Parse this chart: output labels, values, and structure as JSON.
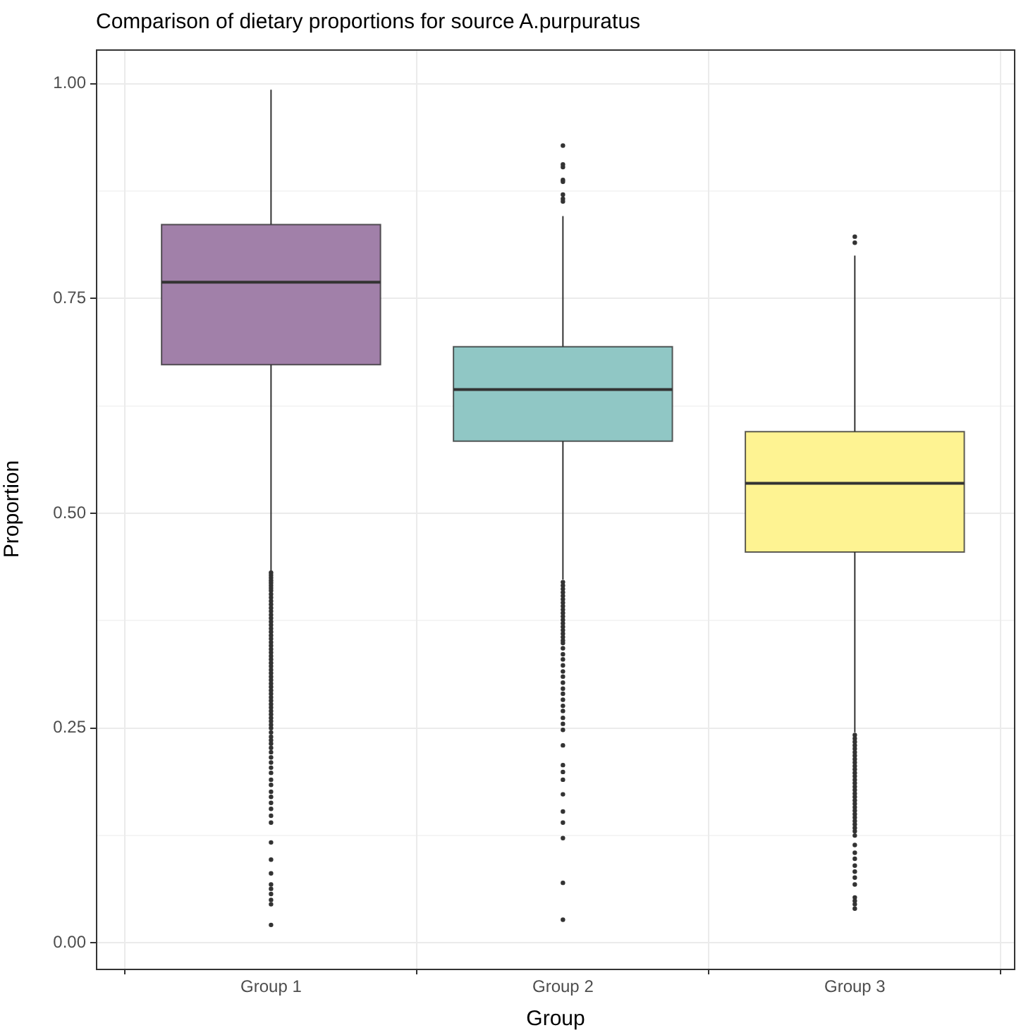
{
  "chart_data": {
    "type": "box",
    "title": "Comparison of dietary proportions for source A.purpuratus",
    "xlabel": "Group",
    "ylabel": "Proportion",
    "categories": [
      "Group 1",
      "Group 2",
      "Group 3"
    ],
    "colors": [
      "#a180a9",
      "#90c7c5",
      "#fef392"
    ],
    "boxes": [
      {
        "low": 0.43,
        "q1": 0.673,
        "median": 0.769,
        "q3": 0.836,
        "high": 0.993,
        "outliers": [
          0.431,
          0.428,
          0.425,
          0.422,
          0.419,
          0.416,
          0.413,
          0.41,
          0.406,
          0.402,
          0.398,
          0.394,
          0.39,
          0.386,
          0.382,
          0.378,
          0.374,
          0.37,
          0.366,
          0.362,
          0.358,
          0.354,
          0.35,
          0.346,
          0.342,
          0.338,
          0.334,
          0.33,
          0.326,
          0.322,
          0.318,
          0.314,
          0.31,
          0.306,
          0.302,
          0.298,
          0.294,
          0.29,
          0.286,
          0.282,
          0.278,
          0.274,
          0.27,
          0.266,
          0.262,
          0.258,
          0.254,
          0.25,
          0.245,
          0.24,
          0.236,
          0.232,
          0.227,
          0.222,
          0.216,
          0.21,
          0.204,
          0.198,
          0.19,
          0.184,
          0.176,
          0.17,
          0.163,
          0.156,
          0.148,
          0.14,
          0.117,
          0.097,
          0.081,
          0.068,
          0.063,
          0.057,
          0.05,
          0.045,
          0.021
        ]
      },
      {
        "low": 0.423,
        "q1": 0.584,
        "median": 0.644,
        "q3": 0.694,
        "high": 0.846,
        "outliers": [
          0.928,
          0.906,
          0.903,
          0.888,
          0.886,
          0.871,
          0.866,
          0.863,
          0.42,
          0.416,
          0.412,
          0.408,
          0.404,
          0.4,
          0.396,
          0.392,
          0.388,
          0.384,
          0.38,
          0.376,
          0.372,
          0.368,
          0.364,
          0.36,
          0.356,
          0.352,
          0.349,
          0.343,
          0.336,
          0.33,
          0.323,
          0.316,
          0.31,
          0.303,
          0.296,
          0.29,
          0.283,
          0.276,
          0.27,
          0.262,
          0.255,
          0.248,
          0.23,
          0.207,
          0.199,
          0.19,
          0.173,
          0.153,
          0.14,
          0.122,
          0.07,
          0.027
        ]
      },
      {
        "low": 0.245,
        "q1": 0.455,
        "median": 0.535,
        "q3": 0.595,
        "high": 0.8,
        "outliers": [
          0.822,
          0.815,
          0.242,
          0.238,
          0.234,
          0.23,
          0.226,
          0.222,
          0.218,
          0.214,
          0.21,
          0.206,
          0.202,
          0.198,
          0.194,
          0.19,
          0.186,
          0.182,
          0.178,
          0.174,
          0.17,
          0.166,
          0.162,
          0.158,
          0.154,
          0.15,
          0.146,
          0.142,
          0.138,
          0.134,
          0.13,
          0.125,
          0.114,
          0.105,
          0.098,
          0.09,
          0.083,
          0.076,
          0.068,
          0.053,
          0.049,
          0.045,
          0.04
        ]
      }
    ],
    "ylim": [
      -0.03,
      1.04
    ],
    "yticks": [
      {
        "value": 0,
        "label": "0.00"
      },
      {
        "value": 0.125,
        "label": null
      },
      {
        "value": 0.25,
        "label": "0.25"
      },
      {
        "value": 0.375,
        "label": null
      },
      {
        "value": 0.5,
        "label": "0.50"
      },
      {
        "value": 0.625,
        "label": null
      },
      {
        "value": 0.75,
        "label": "0.75"
      },
      {
        "value": 0.875,
        "label": null
      },
      {
        "value": 1,
        "label": "1.00"
      }
    ],
    "grid": true
  }
}
